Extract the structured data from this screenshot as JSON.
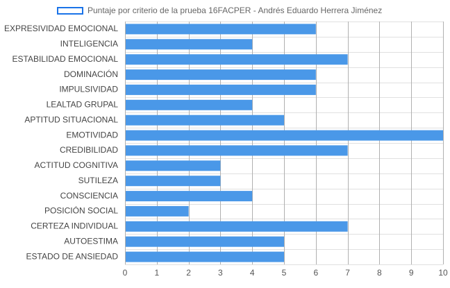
{
  "chart_data": {
    "type": "bar",
    "orientation": "horizontal",
    "title": "",
    "xlabel": "",
    "ylabel": "",
    "categories": [
      "EXPRESIVIDAD EMOCIONAL",
      "INTELIGENCIA",
      "ESTABILIDAD EMOCIONAL",
      "DOMINACIÓN",
      "IMPULSIVIDAD",
      "LEALTAD GRUPAL",
      "APTITUD SITUACIONAL",
      "EMOTIVIDAD",
      "CREDIBILIDAD",
      "ACTITUD COGNITIVA",
      "SUTILEZA",
      "CONSCIENCIA",
      "POSICIÓN SOCIAL",
      "CERTEZA INDIVIDUAL",
      "AUTOESTIMA",
      "ESTADO DE ANSIEDAD"
    ],
    "series": [
      {
        "name": "Puntaje por criterio de la prueba 16FACPER - Andrés Eduardo Herrera Jiménez",
        "values": [
          6,
          4,
          7,
          6,
          6,
          4,
          5,
          10,
          7,
          3,
          3,
          4,
          2,
          7,
          5,
          5
        ]
      }
    ],
    "xlim": [
      0,
      10
    ],
    "xticks": [
      "0",
      "1",
      "2",
      "3",
      "4",
      "5",
      "6",
      "7",
      "8",
      "9",
      "10"
    ],
    "grid": true,
    "legend_position": "top",
    "colors": {
      "bar_fill": "#4a98e8",
      "legend_border": "#1a73e8",
      "grid": "#e0e0e0",
      "grid_major": "#b0b0b0",
      "label": "#444444",
      "tick": "#555555"
    }
  }
}
